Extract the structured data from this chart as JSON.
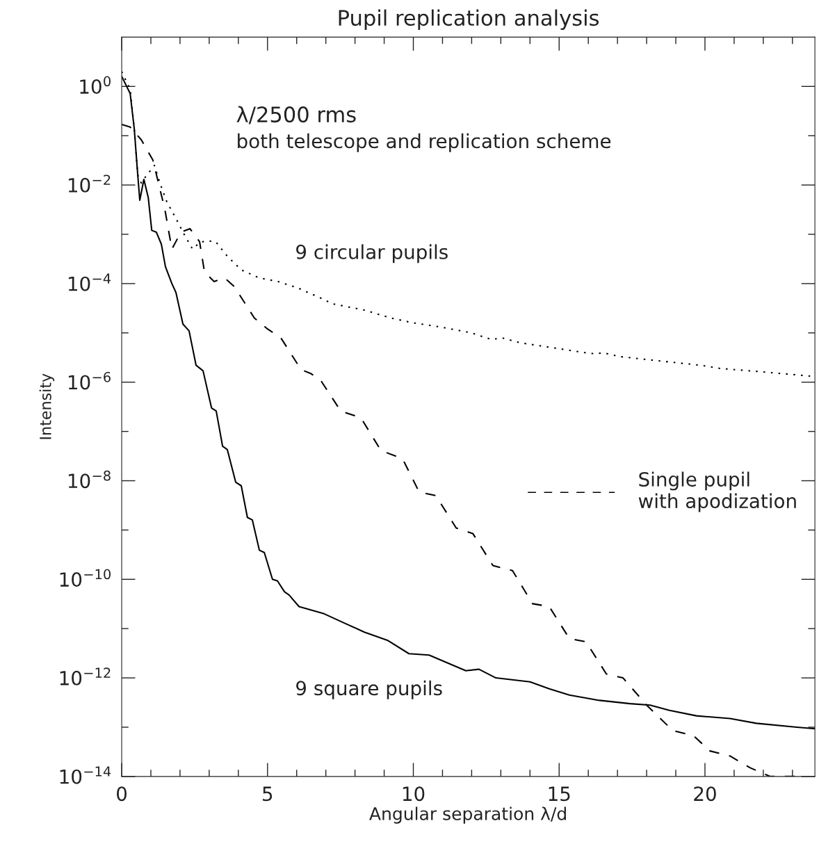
{
  "chart_data": {
    "type": "line",
    "title": "Pupil replication analysis",
    "xlabel": "Angular separation λ/d",
    "ylabel": "Intensity",
    "annotations": [
      "λ/2500 rms",
      "both telescope and replication scheme"
    ],
    "log": "y",
    "grid": false,
    "legend": "right",
    "marker": "none",
    "xlim": [
      0,
      23.77
    ],
    "xticks": [
      0,
      {
        "value": 1,
        "label": null
      },
      {
        "value": 2,
        "label": null
      },
      {
        "value": 3,
        "label": null
      },
      {
        "value": 4,
        "label": null
      },
      5,
      {
        "value": 6,
        "label": null
      },
      {
        "value": 7,
        "label": null
      },
      {
        "value": 8,
        "label": null
      },
      {
        "value": 9,
        "label": null
      },
      10,
      {
        "value": 11,
        "label": null
      },
      {
        "value": 12,
        "label": null
      },
      {
        "value": 13,
        "label": null
      },
      {
        "value": 14,
        "label": null
      },
      15,
      {
        "value": 16,
        "label": null
      },
      {
        "value": 17,
        "label": null
      },
      {
        "value": 18,
        "label": null
      },
      {
        "value": 19,
        "label": null
      },
      20,
      {
        "value": 21,
        "label": null
      },
      {
        "value": 22,
        "label": null
      },
      {
        "value": 23,
        "label": null
      }
    ],
    "ylim": [
      1e-14,
      10
    ],
    "yticks": [
      {
        "value": 1,
        "label": "10$^{0}$"
      },
      {
        "value": 0.1,
        "label": null
      },
      {
        "value": 0.01,
        "label": "10$^{−2}$"
      },
      {
        "value": 0.001,
        "label": null
      },
      {
        "value": 0.0001,
        "label": "10$^{−4}$"
      },
      {
        "value": 1e-05,
        "label": null
      },
      {
        "value": 1e-06,
        "label": "10$^{−6}$"
      },
      {
        "value": 1e-07,
        "label": null
      },
      {
        "value": 1e-08,
        "label": "10$^{−8}$"
      },
      {
        "value": 1e-09,
        "label": null
      },
      {
        "value": 1e-10,
        "label": "10$^{−10}$"
      },
      {
        "value": 1e-11,
        "label": null
      },
      {
        "value": 1e-12,
        "label": "10$^{−12}$"
      },
      {
        "value": 1e-13,
        "label": null
      },
      {
        "value": 1e-14,
        "label": "10$^{−14}$"
      }
    ],
    "series": [
      {
        "name": "9 square pupils",
        "color": "#000000",
        "line_style": "solid",
        "x": [
          0,
          0.29,
          0.43,
          0.55,
          0.62,
          0.76,
          0.91,
          1.03,
          1.19,
          1.36,
          1.5,
          1.72,
          1.86,
          2.1,
          2.31,
          2.55,
          2.79,
          3.08,
          3.24,
          3.46,
          3.62,
          3.91,
          4.1,
          4.31,
          4.48,
          4.72,
          4.89,
          5.17,
          5.34,
          5.58,
          5.74,
          6.08,
          6.94,
          7.63,
          8.32,
          9.11,
          9.85,
          10.54,
          11.8,
          12.25,
          12.83,
          14.0,
          14.66,
          15.35,
          16.38,
          17.43,
          18.12,
          18.78,
          19.71,
          20.86,
          21.76,
          23.15,
          23.77
        ],
        "values": [
          1.6,
          0.72,
          0.14,
          0.016,
          0.0049,
          0.013,
          0.0056,
          0.0012,
          0.0011,
          0.00063,
          0.00022,
          0.0001,
          6.6e-05,
          1.5e-05,
          1.1e-05,
          2.2e-06,
          1.7e-06,
          3e-07,
          2.6e-07,
          5e-08,
          4.3e-08,
          9.3e-09,
          7.9e-09,
          1.8e-09,
          1.6e-09,
          3.9e-10,
          3.5e-10,
          1e-10,
          9.3e-11,
          5.6e-11,
          4.8e-11,
          2.8e-11,
          2e-11,
          1.3e-11,
          8.5e-12,
          5.8e-12,
          3.1e-12,
          2.9e-12,
          1.4e-12,
          1.5e-12,
          1e-12,
          8.3e-13,
          6e-13,
          4.5e-13,
          3.5e-13,
          3e-13,
          2.8e-13,
          2.2e-13,
          1.7e-13,
          1.5e-13,
          1.2e-13,
          1e-13,
          9.3e-14
        ]
      },
      {
        "name": "Single pupil\nwith apodization",
        "color": "#000000",
        "line_style": "dashed",
        "x": [
          0,
          0.29,
          0.67,
          1.07,
          1.48,
          1.72,
          2.03,
          2.34,
          2.67,
          2.84,
          3.17,
          3.53,
          3.86,
          4.55,
          5.0,
          5.46,
          6.15,
          6.48,
          6.82,
          7.51,
          8.2,
          8.89,
          9.63,
          10.2,
          10.77,
          11.47,
          12.04,
          12.73,
          13.4,
          14.09,
          14.66,
          15.35,
          15.92,
          16.62,
          17.19,
          18.0,
          18.9,
          19.6,
          20.17,
          20.86,
          21.55,
          22.24,
          23.39
        ],
        "values": [
          0.17,
          0.15,
          0.083,
          0.032,
          0.0032,
          0.0005,
          0.0011,
          0.0013,
          0.00071,
          0.00017,
          0.00011,
          0.00013,
          8.7e-05,
          2e-05,
          1.2e-05,
          7.9e-06,
          1.8e-06,
          1.5e-06,
          1.1e-06,
          2.6e-07,
          1.9e-07,
          4.1e-08,
          2.8e-08,
          5.9e-09,
          5e-09,
          1.1e-09,
          8.5e-10,
          1.9e-10,
          1.5e-10,
          3.2e-11,
          2.8e-11,
          6.3e-12,
          5.4e-12,
          1.2e-12,
          1e-12,
          2.8e-13,
          8.5e-14,
          6.8e-14,
          3.3e-14,
          2.6e-14,
          1.5e-14,
          1e-14,
          1e-14
        ]
      },
      {
        "name": "9 circular pupils",
        "color": "#000000",
        "line_style": "dotted",
        "x": [
          0,
          0.29,
          0.43,
          0.55,
          0.67,
          0.83,
          1.12,
          1.31,
          1.55,
          1.86,
          2.1,
          2.43,
          2.67,
          2.91,
          3.22,
          3.62,
          4.1,
          4.72,
          5.36,
          6.01,
          6.79,
          7.22,
          8.32,
          9.23,
          9.99,
          10.99,
          11.99,
          12.66,
          13.09,
          13.66,
          14.97,
          16.09,
          16.54,
          17.09,
          18.19,
          19.86,
          20.52,
          22.07,
          23.77
        ],
        "values": [
          2.0,
          0.87,
          0.14,
          0.016,
          0.011,
          0.015,
          0.025,
          0.011,
          0.0045,
          0.0021,
          0.0011,
          0.0005,
          0.00068,
          0.00074,
          0.00071,
          0.00036,
          0.00019,
          0.00013,
          0.00011,
          8.3e-05,
          5.2e-05,
          3.9e-05,
          2.9e-05,
          2e-05,
          1.6e-05,
          1.3e-05,
          1e-05,
          7.4e-06,
          7.8e-06,
          6.3e-06,
          4.8e-06,
          3.8e-06,
          3.9e-06,
          3.3e-06,
          2.8e-06,
          2.2e-06,
          1.9e-06,
          1.6e-06,
          1.3e-06
        ]
      }
    ]
  }
}
